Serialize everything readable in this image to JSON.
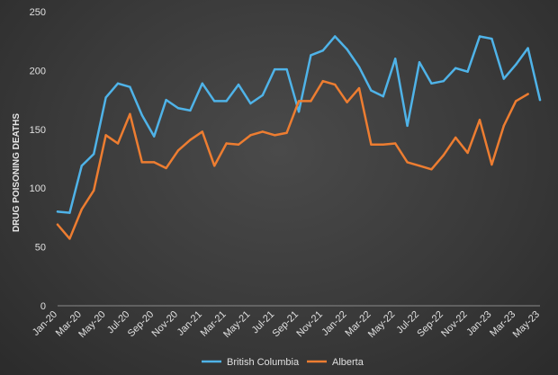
{
  "chart_data": {
    "type": "line",
    "ylabel": "DRUG POISONING DEATHS",
    "xlabel": "",
    "ylim": [
      0,
      250
    ],
    "yticks": [
      0,
      50,
      100,
      150,
      200,
      250
    ],
    "grid": false,
    "legend_position": "bottom",
    "x": [
      "Jan-20",
      "Feb-20",
      "Mar-20",
      "Apr-20",
      "May-20",
      "Jun-20",
      "Jul-20",
      "Aug-20",
      "Sep-20",
      "Oct-20",
      "Nov-20",
      "Dec-20",
      "Jan-21",
      "Feb-21",
      "Mar-21",
      "Apr-21",
      "May-21",
      "Jun-21",
      "Jul-21",
      "Aug-21",
      "Sep-21",
      "Oct-21",
      "Nov-21",
      "Dec-21",
      "Jan-22",
      "Feb-22",
      "Mar-22",
      "Apr-22",
      "May-22",
      "Jun-22",
      "Jul-22",
      "Aug-22",
      "Sep-22",
      "Oct-22",
      "Nov-22",
      "Dec-22",
      "Jan-23",
      "Feb-23",
      "Mar-23",
      "Apr-23",
      "May-23"
    ],
    "xtick_labels": [
      "Jan-20",
      "Mar-20",
      "May-20",
      "Jul-20",
      "Sep-20",
      "Nov-20",
      "Jan-21",
      "Mar-21",
      "May-21",
      "Jul-21",
      "Sep-21",
      "Nov-21",
      "Jan-22",
      "Mar-22",
      "May-22",
      "Jul-22",
      "Sep-22",
      "Nov-22",
      "Jan-23",
      "Mar-23",
      "May-23"
    ],
    "series": [
      {
        "name": "British Columbia",
        "color": "#4fb3e8",
        "values": [
          80,
          79,
          119,
          129,
          177,
          189,
          186,
          162,
          144,
          175,
          168,
          166,
          189,
          174,
          174,
          188,
          172,
          179,
          201,
          201,
          165,
          213,
          217,
          229,
          218,
          203,
          183,
          178,
          210,
          153,
          207,
          189,
          191,
          202,
          199,
          229,
          227,
          193,
          205,
          219,
          175
        ]
      },
      {
        "name": "Alberta",
        "color": "#ed7d31",
        "values": [
          69,
          57,
          82,
          98,
          145,
          138,
          163,
          122,
          122,
          117,
          132,
          141,
          148,
          119,
          138,
          137,
          145,
          148,
          145,
          147,
          174,
          174,
          191,
          188,
          173,
          185,
          137,
          137,
          138,
          122,
          119,
          116,
          128,
          143,
          130,
          158,
          120,
          153,
          174,
          180,
          null
        ]
      }
    ]
  }
}
